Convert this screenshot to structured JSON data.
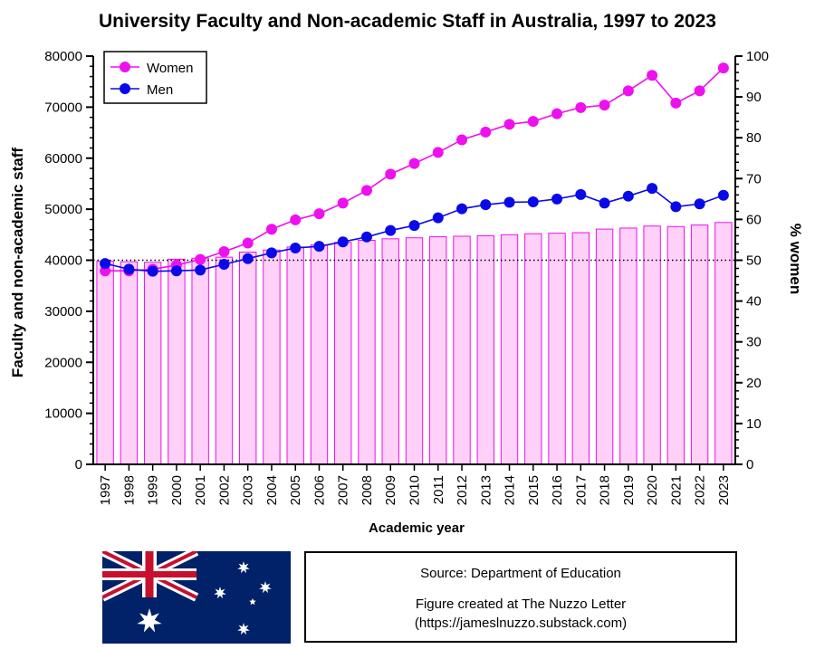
{
  "chart_data": {
    "type": "bar",
    "title": "University Faculty and Non-academic Staff in Australia, 1997 to 2023",
    "xlabel": "Academic year",
    "ylabel": "Faculty and non-academic staff",
    "y2label": "% women",
    "ylim": [
      0,
      80000
    ],
    "y2lim": [
      0,
      100
    ],
    "y_ticks": [
      "0",
      "10000",
      "20000",
      "30000",
      "40000",
      "50000",
      "60000",
      "70000",
      "80000"
    ],
    "y2_ticks": [
      "0",
      "10",
      "20",
      "30",
      "40",
      "50",
      "60",
      "70",
      "80",
      "90",
      "100"
    ],
    "categories": [
      "1997",
      "1998",
      "1999",
      "2000",
      "2001",
      "2002",
      "2003",
      "2004",
      "2005",
      "2006",
      "2007",
      "2008",
      "2009",
      "2010",
      "2011",
      "2012",
      "2013",
      "2014",
      "2015",
      "2016",
      "2017",
      "2018",
      "2019",
      "2020",
      "2021",
      "2022",
      "2023"
    ],
    "bar_values": [
      39800,
      39700,
      39600,
      40200,
      40400,
      40600,
      41600,
      42000,
      42600,
      43000,
      43500,
      43900,
      44200,
      44400,
      44600,
      44700,
      44800,
      45000,
      45200,
      45300,
      45400,
      46100,
      46300,
      46700,
      46600,
      46900,
      47400
    ],
    "reference_line": 40000,
    "series": [
      {
        "name": "Women",
        "axis": "right",
        "color": "#ee10ee",
        "values": [
          47.4,
          47.4,
          47.8,
          48.8,
          50.2,
          52.1,
          54.2,
          57.6,
          59.9,
          61.4,
          64.0,
          67.1,
          71.1,
          73.7,
          76.4,
          79.5,
          81.4,
          83.3,
          84.0,
          85.9,
          87.4,
          88.0,
          91.5,
          95.3,
          88.5,
          91.5,
          97.1
        ]
      },
      {
        "name": "Men",
        "axis": "right",
        "color": "#0a0ae8",
        "values": [
          49.2,
          47.8,
          47.3,
          47.4,
          47.6,
          49.0,
          50.4,
          51.8,
          53.0,
          53.4,
          54.5,
          55.7,
          57.3,
          58.5,
          60.4,
          62.6,
          63.6,
          64.2,
          64.3,
          65.0,
          66.1,
          64.0,
          65.7,
          67.6,
          63.1,
          63.8,
          65.9
        ]
      }
    ],
    "bar_color": "#ffd0f8",
    "bar_edge_color": "#ee10ee",
    "legend_position": "top-left",
    "grid": false
  },
  "source": {
    "line1": "Source: Department of Education",
    "line2": "Figure created at The Nuzzo Letter",
    "line3": "(https://jameslnuzzo.substack.com)"
  },
  "flag_label": "Australian flag"
}
